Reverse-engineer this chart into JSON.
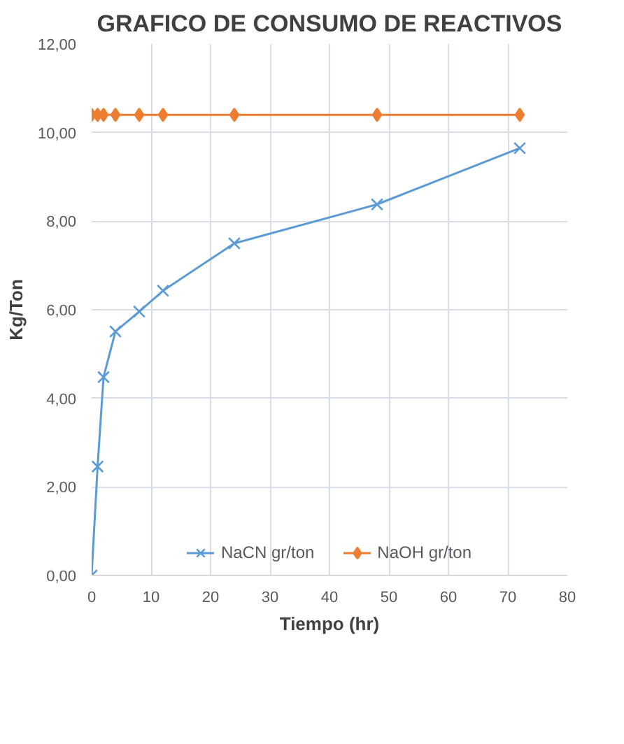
{
  "chart_data": {
    "type": "line",
    "title": "GRAFICO DE CONSUMO DE REACTIVOS",
    "xlabel": "Tiempo (hr)",
    "ylabel": "Kg/Ton",
    "x": [
      0,
      1,
      2,
      4,
      8,
      12,
      24,
      48,
      72
    ],
    "series": [
      {
        "name": "NaCN gr/ton",
        "color": "#5b9bd5",
        "marker": "cross",
        "values": [
          0,
          2.46,
          4.48,
          5.51,
          5.96,
          6.43,
          7.5,
          8.38,
          9.65
        ]
      },
      {
        "name": "NaOH gr/ton",
        "color": "#ed7d31",
        "marker": "diamond",
        "values": [
          10.4,
          10.4,
          10.4,
          10.4,
          10.4,
          10.4,
          10.4,
          10.4,
          10.4
        ]
      }
    ],
    "xlim": [
      0,
      80
    ],
    "xticks": [
      0,
      10,
      20,
      30,
      40,
      50,
      60,
      70,
      80
    ],
    "ylim": [
      0,
      12
    ],
    "yticks": [
      {
        "value": 0,
        "label": "0,00"
      },
      {
        "value": 2,
        "label": "2,00"
      },
      {
        "value": 4,
        "label": "4,00"
      },
      {
        "value": 6,
        "label": "6,00"
      },
      {
        "value": 8,
        "label": "8,00"
      },
      {
        "value": 10,
        "label": "10,00"
      },
      {
        "value": 12,
        "label": "12,00"
      }
    ],
    "grid": true,
    "legend": "bottom",
    "line_style": "solid"
  }
}
